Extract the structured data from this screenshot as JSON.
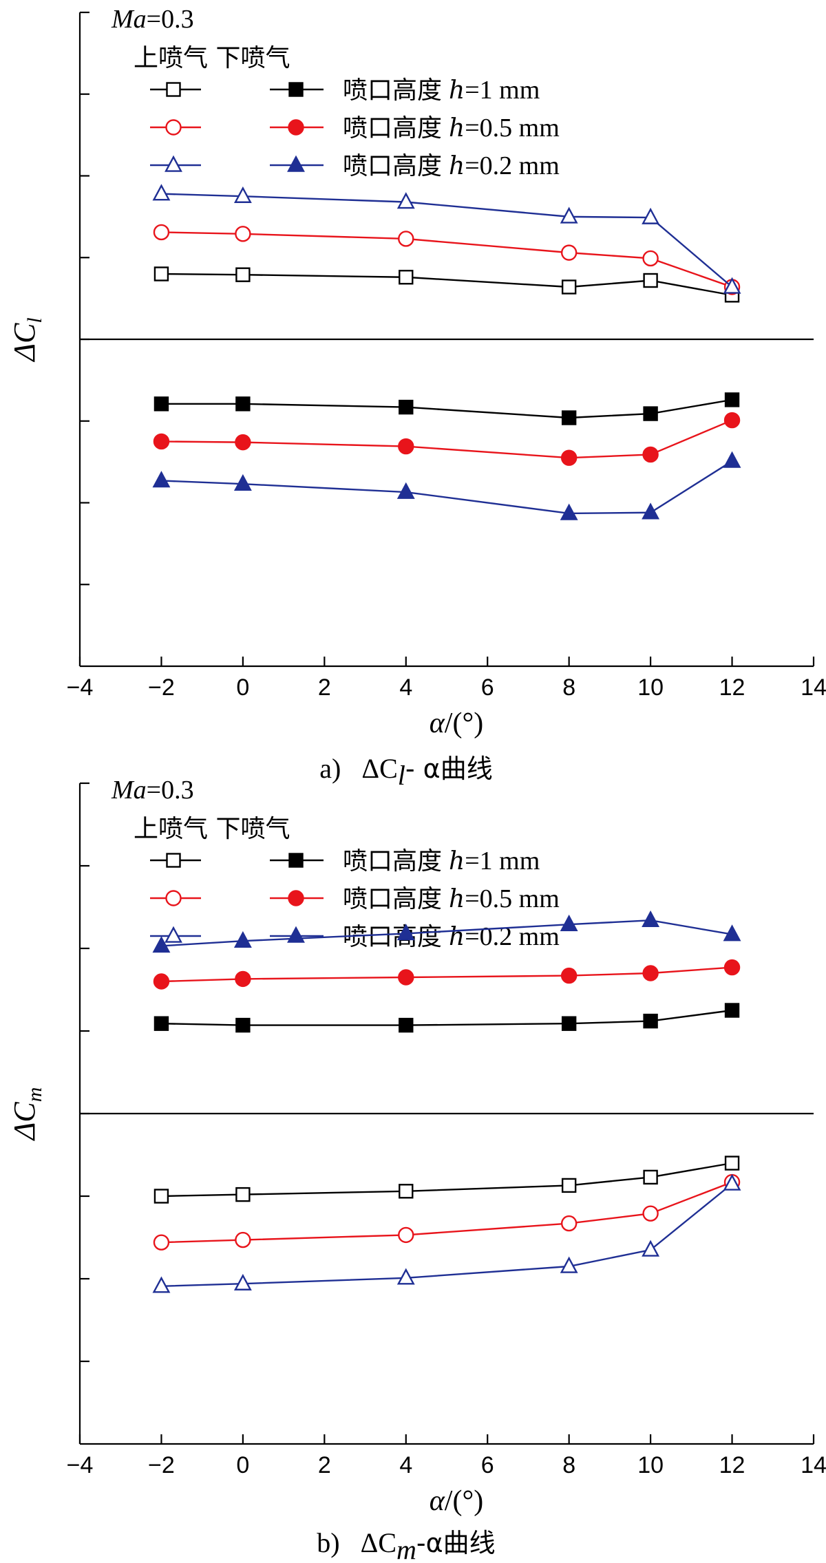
{
  "chart_data": [
    {
      "type": "line",
      "caption": {
        "prefix": "a)",
        "symbol": "ΔC",
        "subscript": "l",
        "suffix": "- α曲线"
      },
      "ylabel": {
        "symbol": "ΔC",
        "subscript": "l"
      },
      "xlabel": {
        "symbol": "α",
        "unit": "/(°)"
      },
      "xlim": [
        -4,
        14
      ],
      "x_ticks": [
        -4,
        -2,
        0,
        2,
        4,
        6,
        8,
        10,
        12,
        14
      ],
      "ylim": [
        -4,
        4
      ],
      "y_ticks": [
        -4,
        -3,
        -2,
        -1,
        0,
        1,
        2,
        3,
        4
      ],
      "y_tick_labels_shown": false,
      "zero_line": true,
      "annotation": {
        "ma_label": "Ma",
        "ma_value": "=0.3"
      },
      "legend_header": "上喷气 下喷气",
      "legend_rows": [
        {
          "label": "喷口高度",
          "h": "h",
          "value": "=1 mm",
          "color": "#000000",
          "marker": "square"
        },
        {
          "label": "喷口高度",
          "h": "h",
          "value": "=0.5 mm",
          "color": "#e8141b",
          "marker": "circle"
        },
        {
          "label": "喷口高度",
          "h": "h",
          "value": "=0.2 mm",
          "color": "#1f2f94",
          "marker": "triangle"
        }
      ],
      "x": [
        -2,
        0,
        4,
        8,
        10,
        12
      ],
      "series": [
        {
          "group": "上喷气",
          "h": "1 mm",
          "color": "#000000",
          "marker": "square",
          "filled": false,
          "values": [
            0.8,
            0.79,
            0.76,
            0.64,
            0.72,
            0.54
          ]
        },
        {
          "group": "上喷气",
          "h": "0.5 mm",
          "color": "#e8141b",
          "marker": "circle",
          "filled": false,
          "values": [
            1.31,
            1.29,
            1.23,
            1.06,
            0.99,
            0.64
          ]
        },
        {
          "group": "上喷气",
          "h": "0.2 mm",
          "color": "#1f2f94",
          "marker": "triangle",
          "filled": false,
          "values": [
            1.78,
            1.75,
            1.68,
            1.5,
            1.49,
            0.64
          ]
        },
        {
          "group": "下喷气",
          "h": "1 mm",
          "color": "#000000",
          "marker": "square",
          "filled": true,
          "values": [
            -0.79,
            -0.79,
            -0.83,
            -0.96,
            -0.91,
            -0.74
          ]
        },
        {
          "group": "下喷气",
          "h": "0.5 mm",
          "color": "#e8141b",
          "marker": "circle",
          "filled": true,
          "values": [
            -1.25,
            -1.26,
            -1.31,
            -1.45,
            -1.41,
            -0.99
          ]
        },
        {
          "group": "下喷气",
          "h": "0.2 mm",
          "color": "#1f2f94",
          "marker": "triangle",
          "filled": true,
          "values": [
            -1.73,
            -1.77,
            -1.87,
            -2.13,
            -2.12,
            -1.49
          ]
        }
      ]
    },
    {
      "type": "line",
      "caption": {
        "prefix": "b)",
        "symbol": "ΔC",
        "subscript": "m",
        "suffix": "-α曲线"
      },
      "ylabel": {
        "symbol": "ΔC",
        "subscript": "m"
      },
      "xlabel": {
        "symbol": "α",
        "unit": "/(°)"
      },
      "xlim": [
        -4,
        14
      ],
      "x_ticks": [
        -4,
        -2,
        0,
        2,
        4,
        6,
        8,
        10,
        12,
        14
      ],
      "ylim": [
        -4,
        4
      ],
      "y_ticks": [
        -4,
        -3,
        -2,
        -1,
        0,
        1,
        2,
        3,
        4
      ],
      "y_tick_labels_shown": false,
      "zero_line": true,
      "annotation": {
        "ma_label": "Ma",
        "ma_value": "=0.3"
      },
      "legend_header": "上喷气 下喷气",
      "legend_rows": [
        {
          "label": "喷口高度",
          "h": "h",
          "value": "=1 mm",
          "color": "#000000",
          "marker": "square"
        },
        {
          "label": "喷口高度",
          "h": "h",
          "value": "=0.5 mm",
          "color": "#e8141b",
          "marker": "circle"
        },
        {
          "label": "喷口高度",
          "h": "h",
          "value": "=0.2 mm",
          "color": "#1f2f94",
          "marker": "triangle"
        }
      ],
      "x": [
        -2,
        0,
        4,
        8,
        10,
        12
      ],
      "series": [
        {
          "group": "上喷气",
          "h": "1 mm",
          "color": "#000000",
          "marker": "square",
          "filled": false,
          "values": [
            -1.0,
            -0.98,
            -0.94,
            -0.87,
            -0.77,
            -0.6
          ]
        },
        {
          "group": "上喷气",
          "h": "0.5 mm",
          "color": "#e8141b",
          "marker": "circle",
          "filled": false,
          "values": [
            -1.56,
            -1.53,
            -1.47,
            -1.33,
            -1.21,
            -0.83
          ]
        },
        {
          "group": "上喷气",
          "h": "0.2 mm",
          "color": "#1f2f94",
          "marker": "triangle",
          "filled": false,
          "values": [
            -2.09,
            -2.06,
            -1.99,
            -1.85,
            -1.65,
            -0.85
          ]
        },
        {
          "group": "下喷气",
          "h": "1 mm",
          "color": "#000000",
          "marker": "square",
          "filled": true,
          "values": [
            1.09,
            1.07,
            1.07,
            1.09,
            1.12,
            1.25
          ]
        },
        {
          "group": "下喷气",
          "h": "0.5 mm",
          "color": "#e8141b",
          "marker": "circle",
          "filled": true,
          "values": [
            1.6,
            1.63,
            1.65,
            1.67,
            1.7,
            1.77
          ]
        },
        {
          "group": "下喷气",
          "h": "0.2 mm",
          "color": "#1f2f94",
          "marker": "triangle",
          "filled": true,
          "values": [
            2.03,
            2.09,
            2.18,
            2.29,
            2.34,
            2.17
          ]
        }
      ]
    }
  ]
}
